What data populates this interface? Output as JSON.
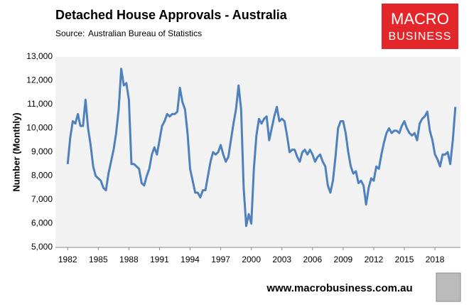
{
  "chart_data": {
    "type": "line",
    "title": "Detached House Approvals - Australia",
    "source_label": "Source:",
    "source": "Australian Bureau of Statistics",
    "y_label": "Number (Monthly)",
    "logo": {
      "line1": "MACRO",
      "line2": "BUSINESS"
    },
    "footer": "www.macrobusiness.com.au",
    "xlim": [
      1980.8,
      2020.5
    ],
    "xticks": [
      1982,
      1985,
      1988,
      1991,
      1994,
      1997,
      2000,
      2003,
      2006,
      2009,
      2012,
      2015,
      2018
    ],
    "ylim": [
      5000,
      13000
    ],
    "yticks": [
      {
        "value": 5000,
        "label": "5,000"
      },
      {
        "value": 6000,
        "label": "6,000"
      },
      {
        "value": 7000,
        "label": "7,000"
      },
      {
        "value": 8000,
        "label": "8,000"
      },
      {
        "value": 9000,
        "label": "9,000"
      },
      {
        "value": 10000,
        "label": "10,000"
      },
      {
        "value": 11000,
        "label": "11,000"
      },
      {
        "value": 12000,
        "label": "12,000"
      },
      {
        "value": 13000,
        "label": "13,000"
      }
    ],
    "grid": false,
    "x": [
      1982,
      1982.25,
      1982.5,
      1982.75,
      1983,
      1983.25,
      1983.5,
      1983.75,
      1984,
      1984.25,
      1984.5,
      1984.75,
      1985,
      1985.25,
      1985.5,
      1985.75,
      1986,
      1986.25,
      1986.5,
      1986.75,
      1987,
      1987.25,
      1987.5,
      1987.75,
      1988,
      1988.25,
      1988.5,
      1988.75,
      1989,
      1989.25,
      1989.5,
      1989.75,
      1990,
      1990.25,
      1990.5,
      1990.75,
      1991,
      1991.25,
      1991.5,
      1991.75,
      1992,
      1992.25,
      1992.5,
      1992.75,
      1993,
      1993.25,
      1993.5,
      1993.75,
      1994,
      1994.25,
      1994.5,
      1994.75,
      1995,
      1995.25,
      1995.5,
      1995.75,
      1996,
      1996.25,
      1996.5,
      1996.75,
      1997,
      1997.25,
      1997.5,
      1997.75,
      1998,
      1998.25,
      1998.5,
      1998.75,
      1999,
      1999.25,
      1999.5,
      1999.75,
      2000,
      2000.25,
      2000.5,
      2000.75,
      2001,
      2001.25,
      2001.5,
      2001.75,
      2002,
      2002.25,
      2002.5,
      2002.75,
      2003,
      2003.25,
      2003.5,
      2003.75,
      2004,
      2004.25,
      2004.5,
      2004.75,
      2005,
      2005.25,
      2005.5,
      2005.75,
      2006,
      2006.25,
      2006.5,
      2006.75,
      2007,
      2007.25,
      2007.5,
      2007.75,
      2008,
      2008.25,
      2008.5,
      2008.75,
      2009,
      2009.25,
      2009.5,
      2009.75,
      2010,
      2010.25,
      2010.5,
      2010.75,
      2011,
      2011.25,
      2011.5,
      2011.75,
      2012,
      2012.25,
      2012.5,
      2012.75,
      2013,
      2013.25,
      2013.5,
      2013.75,
      2014,
      2014.25,
      2014.5,
      2014.75,
      2015,
      2015.25,
      2015.5,
      2015.75,
      2016,
      2016.25,
      2016.5,
      2016.75,
      2017,
      2017.25,
      2017.5,
      2017.75,
      2018,
      2018.25,
      2018.5,
      2018.75,
      2019,
      2019.25,
      2019.5,
      2019.75,
      2020
    ],
    "series": [
      {
        "name": "Detached house approvals",
        "color": "#4f81bd",
        "values": [
          8500,
          9600,
          10300,
          10200,
          10600,
          10100,
          10100,
          11200,
          10000,
          9300,
          8400,
          8000,
          7900,
          7800,
          7500,
          7400,
          8100,
          8600,
          9100,
          9800,
          10800,
          12500,
          11800,
          11900,
          11200,
          8500,
          8500,
          8400,
          8300,
          7700,
          7600,
          8000,
          8300,
          8900,
          9200,
          8900,
          9500,
          10100,
          10300,
          10600,
          10500,
          10600,
          10600,
          10700,
          11700,
          11100,
          10800,
          9800,
          8300,
          7800,
          7300,
          7300,
          7100,
          7400,
          7400,
          8000,
          8600,
          9000,
          8900,
          9000,
          9300,
          8900,
          8600,
          8800,
          9500,
          10200,
          10800,
          11800,
          10800,
          7500,
          5900,
          6400,
          6000,
          8300,
          9700,
          10400,
          10200,
          10400,
          10500,
          9500,
          10000,
          10500,
          10900,
          10300,
          10400,
          10300,
          9700,
          9000,
          9100,
          9100,
          8800,
          8600,
          9000,
          9100,
          8900,
          9100,
          8900,
          8600,
          8800,
          8900,
          8600,
          8400,
          7600,
          7300,
          7800,
          8800,
          10000,
          10300,
          10300,
          9800,
          9000,
          8400,
          8100,
          8200,
          7700,
          7800,
          7600,
          6800,
          7500,
          7900,
          7800,
          8400,
          8300,
          8900,
          9400,
          9800,
          10000,
          9800,
          9900,
          9900,
          9800,
          10100,
          10300,
          10000,
          9800,
          9700,
          9800,
          9500,
          10200,
          10400,
          10500,
          10700,
          9900,
          9500,
          8900,
          8700,
          8400,
          8900,
          8900,
          9000,
          8500,
          9500,
          10900
        ]
      }
    ]
  }
}
